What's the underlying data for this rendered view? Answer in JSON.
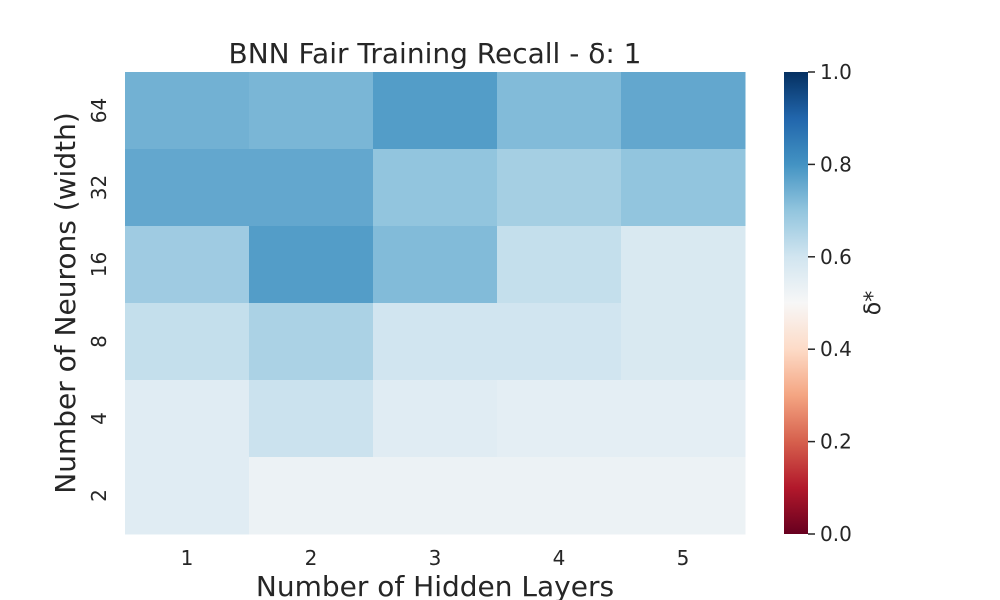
{
  "chart_data": {
    "type": "heatmap",
    "title": "BNN Fair Training Recall - δ: 1",
    "xlabel": "Number of Hidden Layers",
    "ylabel": "Number of Neurons (width)",
    "x_categories": [
      "1",
      "2",
      "3",
      "4",
      "5"
    ],
    "y_categories": [
      "64",
      "32",
      "16",
      "8",
      "4",
      "2"
    ],
    "values": [
      [
        0.74,
        0.73,
        0.78,
        0.72,
        0.76
      ],
      [
        0.76,
        0.76,
        0.7,
        0.67,
        0.7
      ],
      [
        0.68,
        0.78,
        0.72,
        0.62,
        0.58
      ],
      [
        0.62,
        0.66,
        0.6,
        0.6,
        0.58
      ],
      [
        0.56,
        0.61,
        0.56,
        0.55,
        0.55
      ],
      [
        0.56,
        0.53,
        0.53,
        0.53,
        0.53
      ]
    ],
    "colorbar": {
      "label": "δ*",
      "vmin": 0.0,
      "vmax": 1.0,
      "ticks": [
        "0.0",
        "0.2",
        "0.4",
        "0.6",
        "0.8",
        "1.0"
      ]
    },
    "colormap": "RdBu"
  }
}
